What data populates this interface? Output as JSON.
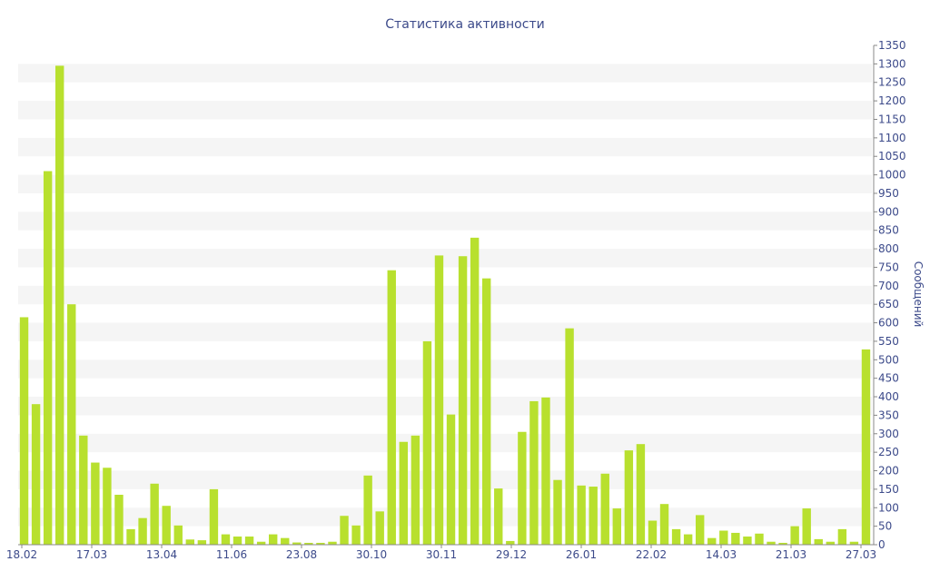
{
  "chart_data": {
    "type": "bar",
    "title": "Статистика активности",
    "xlabel": "",
    "ylabel": "Сообщений",
    "ylim": [
      0,
      1350
    ],
    "y_ticks": [
      0,
      50,
      100,
      150,
      200,
      250,
      300,
      350,
      400,
      450,
      500,
      550,
      600,
      650,
      700,
      750,
      800,
      850,
      900,
      950,
      1000,
      1050,
      1100,
      1150,
      1200,
      1250,
      1300,
      1350
    ],
    "x_tick_labels": [
      "18.02",
      "17.03",
      "13.04",
      "11.06",
      "23.08",
      "30.10",
      "30.11",
      "29.12",
      "26.01",
      "22.02",
      "14.03",
      "21.03",
      "27.03"
    ],
    "values": [
      615,
      380,
      1010,
      1295,
      650,
      295,
      222,
      208,
      135,
      42,
      72,
      165,
      105,
      52,
      14,
      12,
      150,
      28,
      22,
      22,
      8,
      28,
      18,
      6,
      5,
      5,
      8,
      78,
      52,
      187,
      90,
      742,
      278,
      295,
      550,
      782,
      352,
      780,
      830,
      720,
      152,
      10,
      305,
      388,
      398,
      175,
      585,
      160,
      157,
      192,
      98,
      255,
      272,
      65,
      110,
      42,
      28,
      80,
      18,
      38,
      32,
      22,
      30,
      8,
      5,
      50,
      98,
      15,
      8,
      42,
      8,
      528
    ],
    "grid": true,
    "legend": "none",
    "colors": {
      "bar": "#b8e02e",
      "text": "#3c4a8a",
      "band": "#f5f5f5",
      "axis": "#888888"
    }
  }
}
